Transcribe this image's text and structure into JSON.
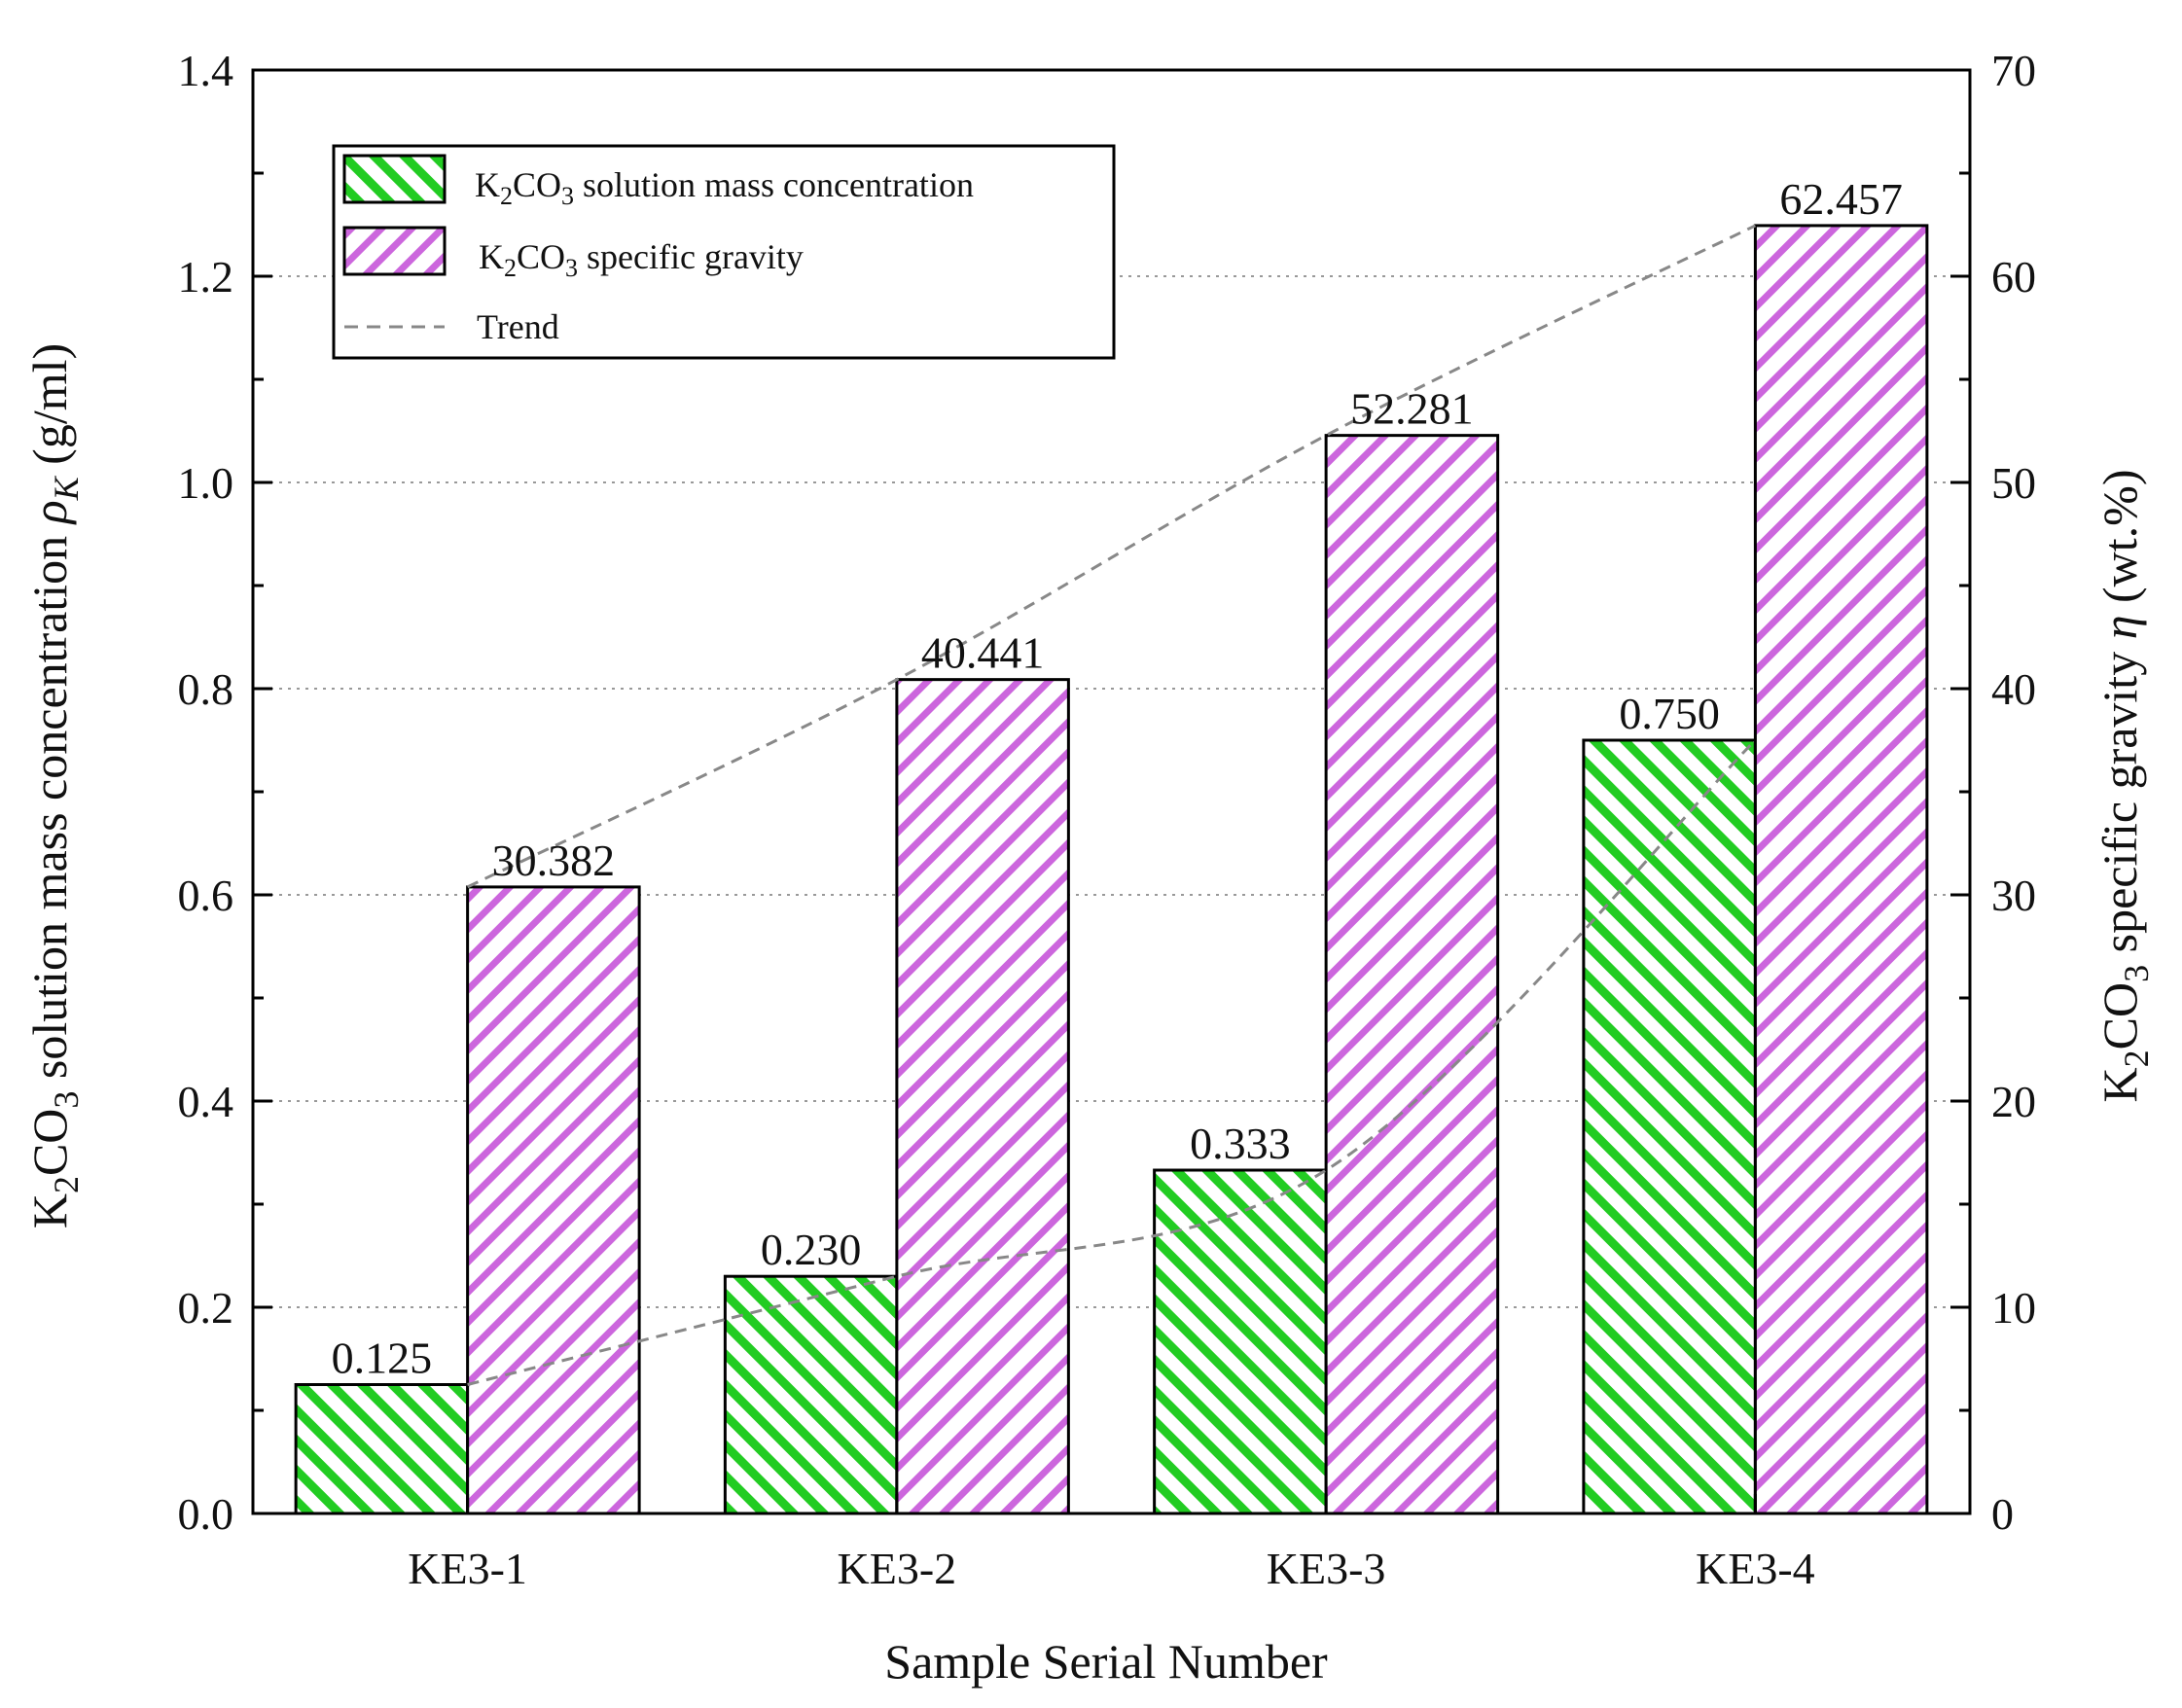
{
  "chart_data": {
    "type": "bar",
    "categories": [
      "KE3-1",
      "KE3-2",
      "KE3-3",
      "KE3-4"
    ],
    "series": [
      {
        "name": "K2CO3 solution mass concentration",
        "axis": "left",
        "values": [
          0.125,
          0.23,
          0.333,
          0.75
        ],
        "labels": [
          "0.125",
          "0.230",
          "0.333",
          "0.750"
        ],
        "color": "#22cc22",
        "pattern": "diagonal-hatch"
      },
      {
        "name": "K2CO3 specific gravity",
        "axis": "right",
        "values": [
          30.382,
          40.441,
          52.281,
          62.457
        ],
        "labels": [
          "30.382",
          "40.441",
          "52.281",
          "62.457"
        ],
        "color": "#cc66dd",
        "pattern": "diagonal-hatch"
      }
    ],
    "trend": {
      "name": "Trend",
      "style": "dashed",
      "color": "#888888"
    },
    "xlabel": "Sample Serial Number",
    "ylabel_left": "K2CO3 solution mass concentration ρK (g/ml)",
    "ylabel_right": "K2CO3 specific gravity η (wt.%)",
    "ylim_left": [
      0,
      1.4
    ],
    "ylim_right": [
      0,
      70
    ],
    "yticks_left": [
      "0.0",
      "0.2",
      "0.4",
      "0.6",
      "0.8",
      "1.0",
      "1.2",
      "1.4"
    ],
    "yticks_right": [
      "0",
      "10",
      "20",
      "30",
      "40",
      "50",
      "60",
      "70"
    ],
    "grid": "horizontal-dotted",
    "legend_position": "top-left"
  },
  "legend": {
    "green_prefix": "K",
    "green_sub1": "2",
    "green_mid": "CO",
    "green_sub2": "3",
    "green_suffix": " solution mass concentration",
    "purple_prefix": "K",
    "purple_sub1": "2",
    "purple_mid": "CO",
    "purple_sub2": "3",
    "purple_suffix": " specific gravity",
    "trend_label": "Trend"
  },
  "axis_titles": {
    "x": "Sample Serial Number",
    "left_prefix": "K",
    "left_sub1": "2",
    "left_mid": "CO",
    "left_sub2": "3",
    "left_suffix": " solution mass concentration ",
    "left_symbol": "ρ",
    "left_symbol_sub": "K",
    "left_unit": " (g/ml)",
    "right_prefix": "K",
    "right_sub1": "2",
    "right_mid": "CO",
    "right_sub2": "3",
    "right_suffix": " specific gravity ",
    "right_symbol": "η",
    "right_unit": " (wt.%)"
  }
}
